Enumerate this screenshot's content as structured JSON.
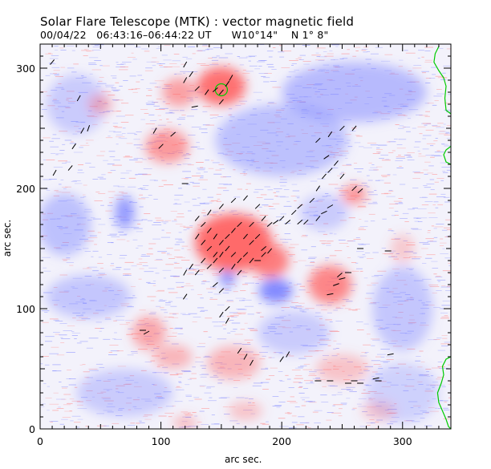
{
  "header": {
    "title": "Solar Flare Telescope (MTK) : vector magnetic field",
    "subtitle": "00/04/22   06:43:16–06:44:22 UT      W10°14\"    N 1° 8\""
  },
  "axes": {
    "xlabel": "arc sec.",
    "ylabel": "arc sec.",
    "xlim": [
      0,
      340
    ],
    "ylim": [
      0,
      320
    ],
    "xticks": [
      0,
      100,
      200,
      300
    ],
    "yticks": [
      0,
      100,
      200,
      300
    ]
  },
  "colors": {
    "positive": "#ff6a6a",
    "negative": "#7c84ff",
    "limb": "#00cc00",
    "vectors": "#000000"
  },
  "chart_data": {
    "type": "heatmap",
    "title": "Solar Flare Telescope (MTK) : vector magnetic field",
    "xlabel": "arc sec.",
    "ylabel": "arc sec.",
    "xlim": [
      0,
      340
    ],
    "ylim": [
      0,
      320
    ],
    "positive_regions": [
      {
        "x": 150,
        "y": 285,
        "rx": 20,
        "ry": 16,
        "strength": 0.95
      },
      {
        "x": 115,
        "y": 280,
        "rx": 14,
        "ry": 12,
        "strength": 0.6
      },
      {
        "x": 105,
        "y": 235,
        "rx": 18,
        "ry": 14,
        "strength": 0.65
      },
      {
        "x": 160,
        "y": 155,
        "rx": 32,
        "ry": 24,
        "strength": 1.0
      },
      {
        "x": 190,
        "y": 140,
        "rx": 16,
        "ry": 14,
        "strength": 0.85
      },
      {
        "x": 240,
        "y": 120,
        "rx": 18,
        "ry": 16,
        "strength": 0.8
      },
      {
        "x": 260,
        "y": 195,
        "rx": 10,
        "ry": 8,
        "strength": 0.7
      },
      {
        "x": 50,
        "y": 270,
        "rx": 10,
        "ry": 8,
        "strength": 0.45
      },
      {
        "x": 90,
        "y": 80,
        "rx": 14,
        "ry": 14,
        "strength": 0.55
      },
      {
        "x": 110,
        "y": 60,
        "rx": 16,
        "ry": 10,
        "strength": 0.45
      },
      {
        "x": 160,
        "y": 55,
        "rx": 22,
        "ry": 14,
        "strength": 0.45
      },
      {
        "x": 250,
        "y": 50,
        "rx": 22,
        "ry": 12,
        "strength": 0.35
      },
      {
        "x": 170,
        "y": 15,
        "rx": 14,
        "ry": 8,
        "strength": 0.35
      },
      {
        "x": 120,
        "y": 5,
        "rx": 10,
        "ry": 6,
        "strength": 0.4
      },
      {
        "x": 280,
        "y": 15,
        "rx": 14,
        "ry": 8,
        "strength": 0.3
      },
      {
        "x": 300,
        "y": 150,
        "rx": 10,
        "ry": 12,
        "strength": 0.3
      }
    ],
    "negative_regions": [
      {
        "x": 195,
        "y": 115,
        "rx": 14,
        "ry": 10,
        "strength": 0.95
      },
      {
        "x": 155,
        "y": 125,
        "rx": 6,
        "ry": 6,
        "strength": 1.0
      },
      {
        "x": 70,
        "y": 180,
        "rx": 8,
        "ry": 14,
        "strength": 0.8
      },
      {
        "x": 20,
        "y": 170,
        "rx": 22,
        "ry": 26,
        "strength": 0.45
      },
      {
        "x": 30,
        "y": 270,
        "rx": 25,
        "ry": 25,
        "strength": 0.35
      },
      {
        "x": 200,
        "y": 240,
        "rx": 55,
        "ry": 30,
        "strength": 0.45
      },
      {
        "x": 260,
        "y": 280,
        "rx": 60,
        "ry": 25,
        "strength": 0.5
      },
      {
        "x": 300,
        "y": 100,
        "rx": 25,
        "ry": 35,
        "strength": 0.4
      },
      {
        "x": 40,
        "y": 110,
        "rx": 35,
        "ry": 18,
        "strength": 0.4
      },
      {
        "x": 70,
        "y": 30,
        "rx": 40,
        "ry": 20,
        "strength": 0.35
      },
      {
        "x": 210,
        "y": 80,
        "rx": 30,
        "ry": 18,
        "strength": 0.35
      },
      {
        "x": 300,
        "y": 30,
        "rx": 30,
        "ry": 25,
        "strength": 0.3
      },
      {
        "x": 235,
        "y": 180,
        "rx": 20,
        "ry": 15,
        "strength": 0.35
      }
    ],
    "vectors": [
      [
        120,
        303,
        60
      ],
      [
        125,
        295,
        55
      ],
      [
        120,
        290,
        60
      ],
      [
        130,
        283,
        45
      ],
      [
        138,
        280,
        55
      ],
      [
        145,
        282,
        40
      ],
      [
        150,
        280,
        50
      ],
      [
        155,
        287,
        55
      ],
      [
        158,
        292,
        60
      ],
      [
        150,
        272,
        50
      ],
      [
        128,
        268,
        10
      ],
      [
        32,
        275,
        60
      ],
      [
        28,
        235,
        55
      ],
      [
        35,
        248,
        60
      ],
      [
        40,
        250,
        70
      ],
      [
        12,
        213,
        60
      ],
      [
        25,
        217,
        50
      ],
      [
        95,
        248,
        60
      ],
      [
        100,
        235,
        45
      ],
      [
        120,
        204,
        0
      ],
      [
        110,
        245,
        40
      ],
      [
        230,
        200,
        55
      ],
      [
        235,
        210,
        50
      ],
      [
        240,
        215,
        45
      ],
      [
        245,
        221,
        50
      ],
      [
        230,
        240,
        45
      ],
      [
        237,
        226,
        35
      ],
      [
        250,
        250,
        45
      ],
      [
        260,
        250,
        50
      ],
      [
        240,
        245,
        55
      ],
      [
        260,
        200,
        45
      ],
      [
        265,
        198,
        40
      ],
      [
        250,
        210,
        50
      ],
      [
        225,
        190,
        45
      ],
      [
        215,
        185,
        40
      ],
      [
        210,
        180,
        45
      ],
      [
        205,
        172,
        40
      ],
      [
        200,
        175,
        45
      ],
      [
        195,
        172,
        35
      ],
      [
        190,
        170,
        40
      ],
      [
        220,
        172,
        45
      ],
      [
        215,
        172,
        40
      ],
      [
        230,
        175,
        50
      ],
      [
        140,
        180,
        55
      ],
      [
        150,
        185,
        50
      ],
      [
        160,
        190,
        45
      ],
      [
        170,
        192,
        50
      ],
      [
        180,
        185,
        45
      ],
      [
        185,
        175,
        50
      ],
      [
        175,
        170,
        45
      ],
      [
        130,
        175,
        50
      ],
      [
        135,
        170,
        45
      ],
      [
        140,
        165,
        50
      ],
      [
        145,
        160,
        55
      ],
      [
        150,
        155,
        50
      ],
      [
        155,
        160,
        45
      ],
      [
        160,
        165,
        50
      ],
      [
        165,
        170,
        45
      ],
      [
        170,
        160,
        50
      ],
      [
        175,
        155,
        45
      ],
      [
        130,
        160,
        55
      ],
      [
        135,
        155,
        50
      ],
      [
        140,
        150,
        45
      ],
      [
        145,
        145,
        50
      ],
      [
        150,
        145,
        55
      ],
      [
        155,
        150,
        50
      ],
      [
        160,
        145,
        45
      ],
      [
        165,
        140,
        50
      ],
      [
        170,
        145,
        45
      ],
      [
        175,
        140,
        50
      ],
      [
        180,
        140,
        0
      ],
      [
        185,
        145,
        45
      ],
      [
        185,
        150,
        40
      ],
      [
        180,
        160,
        45
      ],
      [
        190,
        148,
        50
      ],
      [
        135,
        140,
        50
      ],
      [
        140,
        135,
        45
      ],
      [
        145,
        140,
        50
      ],
      [
        125,
        135,
        55
      ],
      [
        120,
        130,
        60
      ],
      [
        130,
        130,
        50
      ],
      [
        150,
        132,
        45
      ],
      [
        160,
        135,
        55
      ],
      [
        165,
        130,
        50
      ],
      [
        145,
        120,
        40
      ],
      [
        150,
        115,
        45
      ],
      [
        120,
        110,
        55
      ],
      [
        155,
        90,
        60
      ],
      [
        150,
        95,
        55
      ],
      [
        155,
        100,
        45
      ],
      [
        85,
        82,
        0
      ],
      [
        88,
        80,
        30
      ],
      [
        165,
        65,
        55
      ],
      [
        170,
        60,
        60
      ],
      [
        175,
        55,
        60
      ],
      [
        205,
        62,
        60
      ],
      [
        200,
        58,
        55
      ],
      [
        240,
        112,
        10
      ],
      [
        245,
        120,
        20
      ],
      [
        250,
        125,
        15
      ],
      [
        255,
        130,
        0
      ],
      [
        248,
        128,
        40
      ],
      [
        265,
        150,
        0
      ],
      [
        288,
        148,
        0
      ],
      [
        290,
        62,
        10
      ],
      [
        255,
        38,
        0
      ],
      [
        265,
        38,
        0
      ],
      [
        278,
        42,
        10
      ],
      [
        240,
        40,
        0
      ],
      [
        230,
        40,
        0
      ],
      [
        260,
        40,
        0
      ],
      [
        280,
        40,
        0
      ],
      [
        10,
        305,
        50
      ],
      [
        240,
        185,
        30
      ],
      [
        235,
        180,
        25
      ]
    ],
    "limb": [
      [
        330,
        318
      ],
      [
        327,
        312
      ],
      [
        326,
        305
      ],
      [
        330,
        298
      ],
      [
        334,
        292
      ],
      [
        336,
        285
      ],
      [
        335,
        275
      ],
      [
        336,
        265
      ],
      [
        340,
        262
      ]
    ],
    "limb2": [
      [
        340,
        235
      ],
      [
        336,
        232
      ],
      [
        334,
        228
      ],
      [
        336,
        222
      ],
      [
        340,
        220
      ]
    ],
    "limb3": [
      [
        340,
        60
      ],
      [
        336,
        58
      ],
      [
        333,
        52
      ],
      [
        334,
        45
      ],
      [
        332,
        38
      ],
      [
        329,
        30
      ],
      [
        330,
        22
      ],
      [
        333,
        15
      ],
      [
        336,
        8
      ],
      [
        338,
        2
      ],
      [
        340,
        0
      ]
    ],
    "circle": {
      "x": 150,
      "y": 282,
      "r": 5
    }
  }
}
